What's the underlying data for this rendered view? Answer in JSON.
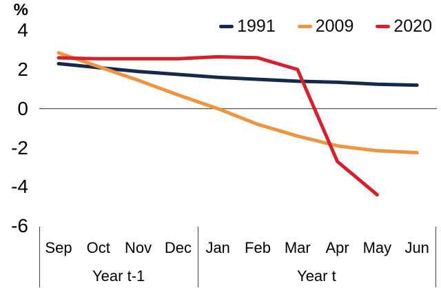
{
  "chart_data": {
    "type": "line",
    "title": "",
    "unit_label": "%",
    "xlabel": "",
    "ylabel": "%",
    "ylim": [
      -6,
      4
    ],
    "yticks": [
      4,
      2,
      0,
      -2,
      -4,
      -6
    ],
    "grid": false,
    "zero_line": true,
    "legend_position": "top-right",
    "categories": [
      "Sep",
      "Oct",
      "Nov",
      "Dec",
      "Jan",
      "Feb",
      "Mar",
      "Apr",
      "May",
      "Jun"
    ],
    "x_groups": [
      {
        "label": "Year t-1",
        "first_month_index": 0,
        "last_month_index": 3
      },
      {
        "label": "Year t",
        "first_month_index": 4,
        "last_month_index": 9
      }
    ],
    "series": [
      {
        "name": "1991",
        "color": "#16294C",
        "values": [
          2.3,
          2.1,
          1.9,
          1.75,
          1.6,
          1.5,
          1.4,
          1.35,
          1.25,
          1.2
        ]
      },
      {
        "name": "2009",
        "color": "#EF9440",
        "values": [
          2.85,
          2.15,
          1.45,
          0.7,
          0.0,
          -0.8,
          -1.4,
          -1.9,
          -2.15,
          -2.25
        ]
      },
      {
        "name": "2020",
        "color": "#D6212D",
        "values": [
          2.6,
          2.55,
          2.55,
          2.55,
          2.65,
          2.6,
          2.0,
          -2.7,
          -4.4,
          null
        ]
      }
    ],
    "axis_color": "#404040",
    "text_color": "#000000"
  }
}
